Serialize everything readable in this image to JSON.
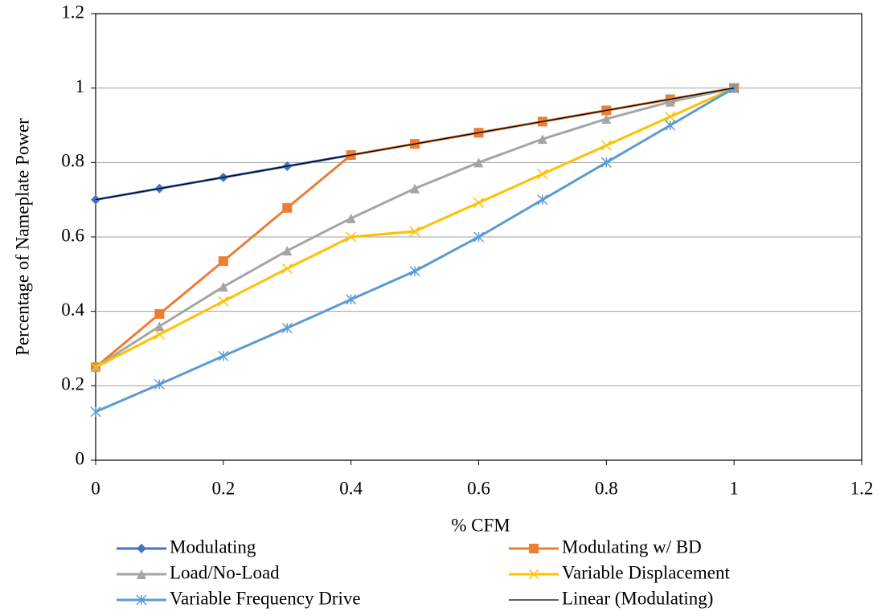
{
  "chart_data": {
    "type": "line",
    "x_label": "% CFM",
    "y_label": "Percentage of Nameplate Power",
    "x": [
      0,
      0.1,
      0.2,
      0.3,
      0.4,
      0.5,
      0.6,
      0.7,
      0.8,
      0.9,
      1
    ],
    "series": [
      {
        "name": "Modulating",
        "color": "#4472c4",
        "marker": "diamond",
        "values": [
          0.7,
          0.73,
          0.76,
          0.79,
          0.82,
          0.85,
          0.88,
          0.91,
          0.94,
          0.97,
          1
        ]
      },
      {
        "name": "Modulating w/ BD",
        "color": "#ed7d31",
        "marker": "square",
        "values": [
          0.25,
          0.393,
          0.535,
          0.678,
          0.82,
          0.85,
          0.88,
          0.91,
          0.94,
          0.97,
          1
        ]
      },
      {
        "name": "Load/No-Load",
        "color": "#a5a5a5",
        "marker": "triangle",
        "values": [
          0.25,
          0.36,
          0.466,
          0.563,
          0.65,
          0.73,
          0.8,
          0.863,
          0.917,
          0.963,
          1
        ]
      },
      {
        "name": "Variable Displacement",
        "color": "#ffc000",
        "marker": "x",
        "values": [
          0.25,
          0.338,
          0.427,
          0.515,
          0.6,
          0.615,
          0.692,
          0.769,
          0.846,
          0.923,
          1
        ]
      },
      {
        "name": "Variable Frequency Drive",
        "color": "#5b9bd5",
        "marker": "asterisk",
        "values": [
          0.13,
          0.204,
          0.28,
          0.355,
          0.432,
          0.508,
          0.6,
          0.7,
          0.8,
          0.9,
          1
        ]
      },
      {
        "name": "Linear (Modulating)",
        "color": "#000000",
        "marker": "none",
        "x": [
          0,
          1
        ],
        "values": [
          0.7,
          1
        ]
      }
    ],
    "xlim": [
      0,
      1.2
    ],
    "xticks": [
      0,
      0.2,
      0.4,
      0.6,
      0.8,
      1,
      1.2
    ],
    "ylim": [
      0,
      1.2
    ],
    "yticks": [
      0,
      0.2,
      0.4,
      0.6,
      0.8,
      1,
      1.2
    ],
    "grid": true,
    "legend": "bottom"
  }
}
